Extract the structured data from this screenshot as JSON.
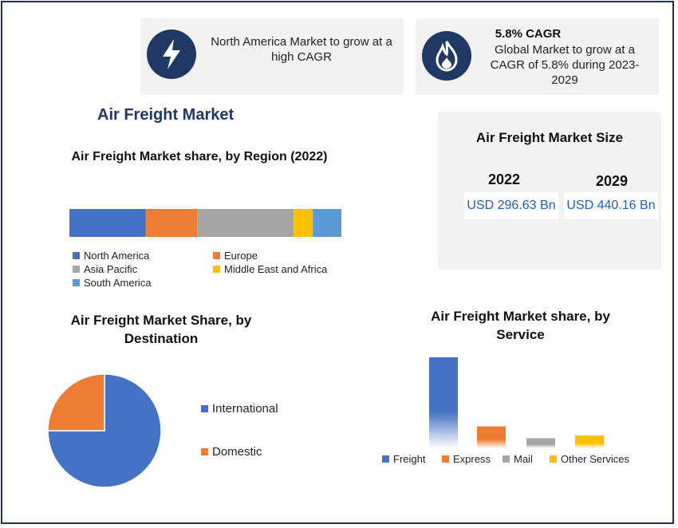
{
  "highlight_left": {
    "icon": "lightning-icon",
    "text": "North America Market to grow at a high CAGR"
  },
  "highlight_right": {
    "icon": "flame-icon",
    "title": "5.8% CAGR",
    "text": "Global Market to grow at a CAGR of 5.8% during 2023-2029"
  },
  "main_title": "Air Freight Market",
  "market_size": {
    "title": "Air Freight Market Size",
    "years": [
      "2022",
      "2029"
    ],
    "values": [
      "USD 296.63 Bn",
      "USD 440.16 Bn"
    ]
  },
  "chart_data": [
    {
      "type": "bar",
      "orientation": "horizontal-stacked",
      "title": "Air Freight Market share, by Region (2022)",
      "series": [
        {
          "name": "North America",
          "value": 28,
          "color": "#4472c4"
        },
        {
          "name": "Europe",
          "value": 19,
          "color": "#ed7d31"
        },
        {
          "name": "Asia Pacific",
          "value": 35.5,
          "color": "#a5a5a5"
        },
        {
          "name": "Middle East and Africa",
          "value": 7,
          "color": "#ffc000"
        },
        {
          "name": "South America",
          "value": 10.5,
          "color": "#5b9bd5"
        }
      ],
      "legend_position": "bottom"
    },
    {
      "type": "pie",
      "title": "Air Freight Market Share, by Destination",
      "slices": [
        {
          "name": "International",
          "value": 75,
          "color": "#4472c4"
        },
        {
          "name": "Domestic",
          "value": 25,
          "color": "#ed7d31"
        }
      ],
      "legend_position": "right"
    },
    {
      "type": "bar",
      "title": "Air Freight Market share, by Service",
      "categories": [
        "Freight",
        "Express",
        "Mail",
        "Other Services"
      ],
      "values": [
        100,
        24,
        11,
        14
      ],
      "colors": [
        "#4472c4",
        "#ed7d31",
        "#a5a5a5",
        "#ffc000"
      ],
      "legend_position": "bottom",
      "grid": false
    }
  ]
}
